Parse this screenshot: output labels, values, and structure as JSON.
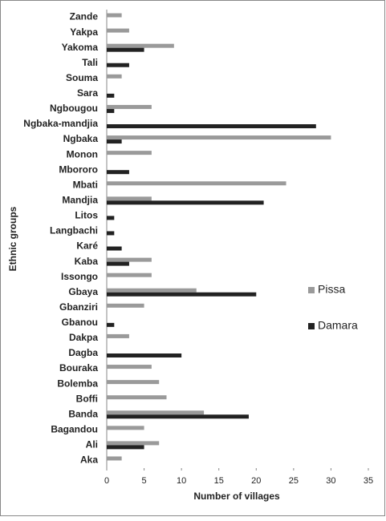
{
  "chart_data": {
    "type": "bar",
    "orientation": "horizontal",
    "x_label": "Number of villages",
    "y_label": "Ethnic groups",
    "categories": [
      "Zande",
      "Yakpa",
      "Yakoma",
      "Tali",
      "Souma",
      "Sara",
      "Ngbougou",
      "Ngbaka-mandjia",
      "Ngbaka",
      "Monon",
      "Mbororo",
      "Mbati",
      "Mandjia",
      "Litos",
      "Langbachi",
      "Karé",
      "Kaba",
      "Issongo",
      "Gbaya",
      "Gbanziri",
      "Gbanou",
      "Dakpa",
      "Dagba",
      "Bouraka",
      "Bolemba",
      "Boffi",
      "Banda",
      "Bagandou",
      "Ali",
      "Aka"
    ],
    "series": [
      {
        "name": "Pissa",
        "color": "#9a9a9a",
        "values": [
          2,
          3,
          9,
          null,
          2,
          null,
          6,
          null,
          30,
          6,
          null,
          24,
          6,
          null,
          null,
          null,
          6,
          6,
          12,
          5,
          null,
          3,
          null,
          6,
          7,
          8,
          13,
          5,
          7,
          2
        ]
      },
      {
        "name": "Damara",
        "color": "#222222",
        "values": [
          null,
          null,
          5,
          3,
          null,
          1,
          1,
          28,
          2,
          null,
          3,
          null,
          21,
          1,
          1,
          2,
          3,
          null,
          20,
          null,
          1,
          null,
          10,
          null,
          null,
          null,
          19,
          null,
          5,
          null
        ]
      }
    ],
    "xlim": [
      0,
      35
    ],
    "xticks": [
      0,
      5,
      10,
      15,
      20,
      25,
      30,
      35
    ],
    "legend": "right"
  }
}
